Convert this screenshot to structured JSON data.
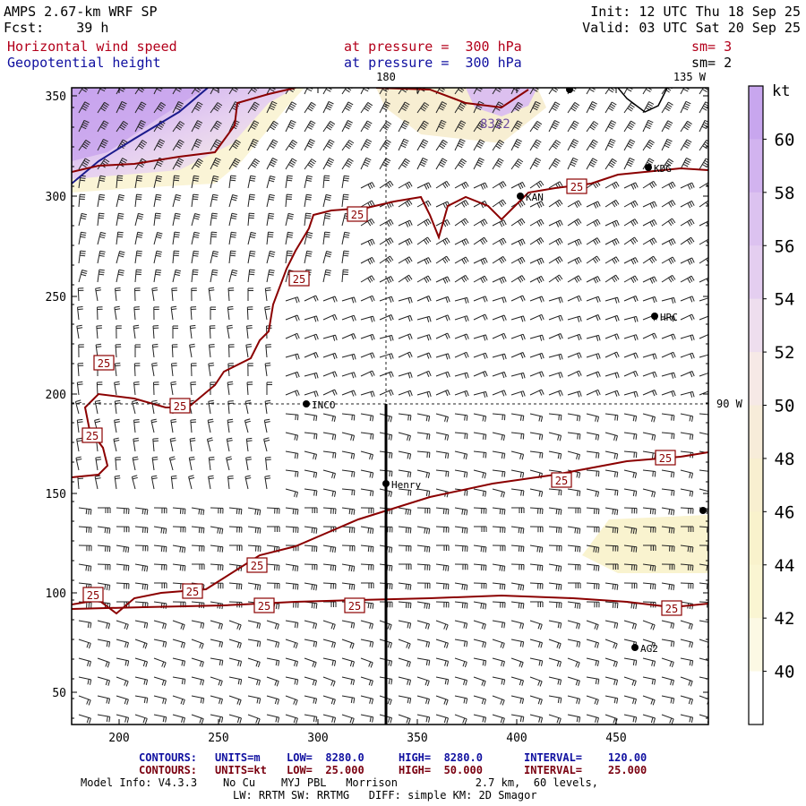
{
  "header": {
    "model": "AMPS 2.67-km WRF SP",
    "init": "Init: 12 UTC Thu 18 Sep 25",
    "fcst": "Fcst:    39 h",
    "valid": "Valid: 03 UTC Sat 20 Sep 25",
    "field1": "Horizontal wind speed",
    "level1": "at pressure =  300 hPa",
    "sm1": "sm= 3",
    "field2": "Geopotential height",
    "level2": "at pressure =  300 hPa",
    "sm2": "sm= 2"
  },
  "map": {
    "meridian_180": "180",
    "meridian_135w": "135 W",
    "meridian_90w": "90 W",
    "height_label": "8322",
    "contour_label": "25",
    "stations": [
      {
        "id": "KDG"
      },
      {
        "id": "KAN"
      },
      {
        "id": "HRC"
      },
      {
        "id": "INCO"
      },
      {
        "id": "Henry"
      },
      {
        "id": "AG2"
      }
    ],
    "y_ticks": [
      "350",
      "300",
      "250",
      "200",
      "150",
      "100",
      "50"
    ],
    "x_ticks": [
      "200",
      "250",
      "300",
      "350",
      "400",
      "450"
    ]
  },
  "colorbar": {
    "unit": "kt",
    "labels": [
      "60",
      "58",
      "56",
      "54",
      "52",
      "50",
      "48",
      "46",
      "44",
      "42",
      "40"
    ],
    "colors": [
      "#c8a6ee",
      "#d2b3ef",
      "#dcc2f0",
      "#e4cef0",
      "#eedeee",
      "#f6e9e6",
      "#f7ecd9",
      "#f8efd0",
      "#f9f2cc",
      "#faf5d2",
      "#fcf9e4",
      "#ffffff"
    ]
  },
  "footer": {
    "c1_title": "CONTOURS:",
    "c1_units": "UNITS=m",
    "c1_low": "LOW=  8280.0",
    "c1_high": "HIGH=  8280.0",
    "c1_interval": "INTERVAL=    120.00",
    "c2_title": "CONTOURS:",
    "c2_units": "UNITS=kt",
    "c2_low": "LOW=  25.000",
    "c2_high": "HIGH=  50.000",
    "c2_interval": "INTERVAL=    25.000",
    "model_info": "Model Info: V4.3.3    No Cu    MYJ PBL   Morrison            2.7 km,  60 levels,",
    "model_info2": "LW: RRTM SW: RRTMG   DIFF: simple KM: 2D Smagor"
  }
}
